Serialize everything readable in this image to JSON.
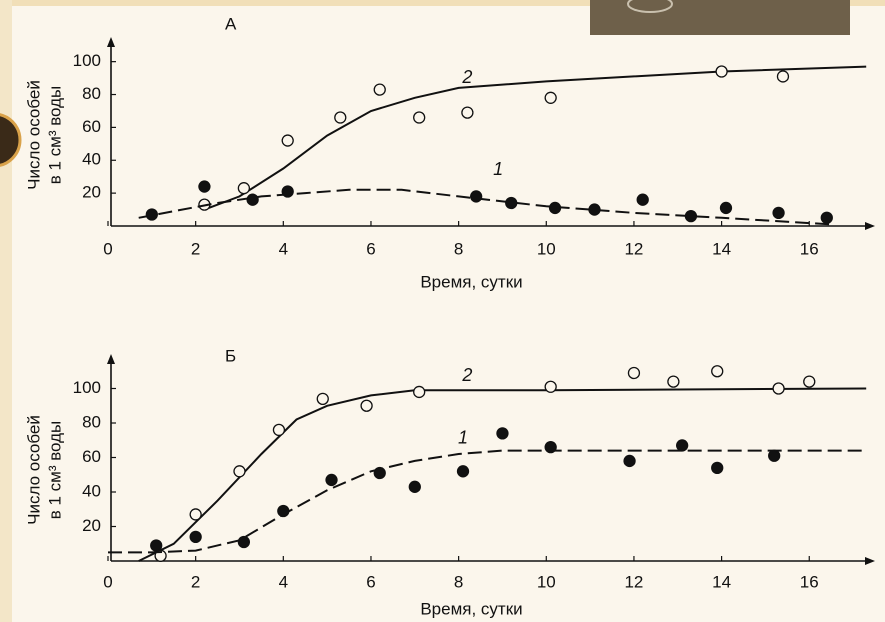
{
  "chart_data": [
    {
      "type": "scatter",
      "panel": "А",
      "ylabel": [
        "Число особей",
        "в 1 см³ воды"
      ],
      "xlabel": "Время, сутки",
      "xlim": [
        0,
        17.5
      ],
      "ylim": [
        0,
        115
      ],
      "xticks": [
        0,
        2,
        4,
        6,
        8,
        10,
        12,
        14,
        16
      ],
      "yticks": [
        20,
        40,
        60,
        80,
        100
      ],
      "series": [
        {
          "name": "2",
          "color": "#111111",
          "marker": "open",
          "line_style": "solid",
          "x": [
            2.2,
            3.1,
            4.1,
            5.3,
            6.2,
            7.1,
            8.2,
            10.1,
            14,
            15.4
          ],
          "values": [
            13,
            23,
            52,
            66,
            83,
            66,
            69,
            78,
            94,
            91
          ],
          "curve_x": [
            2.3,
            3,
            4,
            5,
            6,
            7,
            8,
            10,
            12,
            14,
            17.3
          ],
          "curve_values": [
            11,
            18,
            35,
            55,
            70,
            78,
            84,
            88,
            91,
            94,
            97
          ]
        },
        {
          "name": "1",
          "color": "#111111",
          "marker": "filled",
          "line_style": "dashed",
          "x": [
            1,
            2.2,
            3.3,
            4.1,
            8.4,
            9.2,
            10.2,
            11.1,
            12.2,
            13.3,
            14.1,
            15.3,
            16.4
          ],
          "values": [
            7,
            24,
            16,
            21,
            18,
            14,
            11,
            10,
            16,
            6,
            11,
            8,
            5
          ],
          "curve_x": [
            0.7,
            1.5,
            2.5,
            3.5,
            4.5,
            5.5,
            6.7,
            8,
            10,
            12,
            14,
            16.5
          ],
          "curve_values": [
            5,
            9,
            14,
            18,
            20,
            22,
            22,
            18,
            12,
            8,
            5,
            1
          ]
        }
      ]
    },
    {
      "type": "scatter",
      "panel": "Б",
      "ylabel": [
        "Число особей",
        "в 1 см³ воды"
      ],
      "xlabel": "Время, сутки",
      "xlim": [
        0,
        17.5
      ],
      "ylim": [
        0,
        120
      ],
      "xticks": [
        0,
        2,
        4,
        6,
        8,
        10,
        12,
        14,
        16
      ],
      "yticks": [
        20,
        40,
        60,
        80,
        100
      ],
      "series": [
        {
          "name": "2",
          "color": "#111111",
          "marker": "open",
          "line_style": "solid",
          "x": [
            1.2,
            2,
            3,
            3.9,
            4.9,
            5.9,
            7.1,
            10.1,
            12,
            12.9,
            13.9,
            15.3,
            16
          ],
          "values": [
            3,
            27,
            52,
            76,
            94,
            90,
            98,
            101,
            109,
            104,
            110,
            100,
            104
          ],
          "curve_x": [
            0.7,
            1.5,
            2.5,
            3.5,
            4.3,
            5,
            6,
            7,
            10,
            17.3
          ],
          "curve_values": [
            0,
            10,
            35,
            62,
            82,
            90,
            96,
            99,
            99,
            100
          ]
        },
        {
          "name": "1",
          "color": "#111111",
          "marker": "filled",
          "line_style": "dashed",
          "x": [
            1.1,
            2,
            3.1,
            4,
            5.1,
            6.2,
            7,
            8.1,
            9,
            10.1,
            11.9,
            13.1,
            13.9,
            15.2
          ],
          "values": [
            9,
            14,
            11,
            29,
            47,
            51,
            43,
            52,
            74,
            66,
            58,
            67,
            54,
            61
          ],
          "curve_x": [
            0,
            1,
            2,
            3,
            4,
            5,
            6,
            7,
            8,
            9,
            10,
            17.3
          ],
          "curve_values": [
            5,
            5,
            6,
            12,
            27,
            41,
            52,
            58,
            62,
            64,
            64,
            64
          ]
        }
      ]
    }
  ]
}
